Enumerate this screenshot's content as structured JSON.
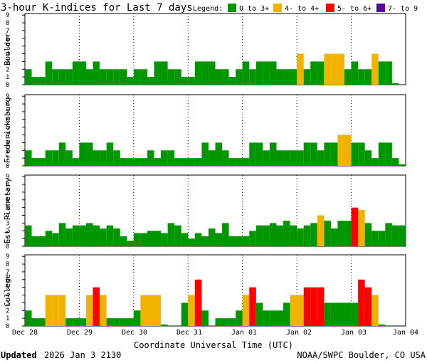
{
  "chart_data": {
    "type": "bar",
    "title": "3-hour K-indices for Last 7 days",
    "legend": {
      "label": "Legend:",
      "items": [
        {
          "label": "0 to 3+",
          "color": "#009600"
        },
        {
          "label": "4- to 4+",
          "color": "#f0b400"
        },
        {
          "label": "5- to 6+",
          "color": "#ff0000"
        },
        {
          "label": "7- to 9",
          "color": "#5a00a0"
        }
      ]
    },
    "x_tick_labels": [
      "Dec 28",
      "Dec 29",
      "Dec 30",
      "Dec 31",
      "Jan 01",
      "Jan 02",
      "Jan 03",
      "Jan 04"
    ],
    "xlabel": "Coordinate Universal Time (UTC)",
    "yticks": [
      "0",
      "1",
      "2",
      "3",
      "4",
      "5",
      "6",
      "7",
      "8",
      "9"
    ],
    "ylim": [
      0,
      9
    ],
    "bars_per_panel": 56,
    "series": [
      {
        "name": "Boulder",
        "values": [
          2,
          1,
          1,
          3,
          2,
          2,
          2,
          3,
          3,
          2,
          3,
          2,
          2,
          2,
          2,
          1,
          2,
          2,
          1,
          3,
          3,
          2,
          2,
          1,
          1,
          3,
          3,
          3,
          2,
          2,
          1,
          2,
          3,
          2,
          3,
          3,
          3,
          2,
          2,
          2,
          4,
          2,
          3,
          3,
          4,
          4,
          4,
          2,
          3,
          2,
          2,
          4,
          3,
          3,
          0.2,
          0
        ]
      },
      {
        "name": "Fredericksburg",
        "values": [
          2,
          1,
          1,
          2,
          2,
          3,
          2,
          1,
          3,
          3,
          2,
          2,
          3,
          2,
          1,
          1,
          1,
          1,
          2,
          1,
          2,
          2,
          1,
          1,
          1,
          1,
          3,
          2,
          3,
          2,
          1,
          1,
          1,
          3,
          3,
          2,
          3,
          2,
          2,
          2,
          2,
          3,
          3,
          2,
          3,
          3,
          4,
          4,
          3,
          3,
          2,
          1,
          3,
          3,
          1,
          0.2
        ]
      },
      {
        "name": "Est. Planetary",
        "values": [
          2.7,
          1.3,
          1.3,
          2,
          1.7,
          3,
          2.3,
          2.7,
          2.7,
          3,
          2.7,
          2.3,
          2.7,
          2.3,
          1.3,
          0.7,
          1.7,
          1.7,
          2,
          2,
          1.7,
          3,
          2.7,
          1.7,
          1,
          1.7,
          1.3,
          2.3,
          1.7,
          3,
          1.3,
          1.3,
          1.3,
          2,
          2.7,
          2.7,
          3,
          2.7,
          3.3,
          2.7,
          2.3,
          2.7,
          3,
          4,
          3.3,
          2.3,
          3.3,
          3.3,
          5,
          4.7,
          3,
          2,
          2,
          3,
          2.7,
          2.7
        ]
      },
      {
        "name": "College",
        "values": [
          2,
          1,
          1,
          4,
          4,
          4,
          1,
          1,
          1,
          4,
          5,
          4,
          1,
          1,
          1,
          1,
          2,
          4,
          4,
          4,
          0.2,
          0,
          0,
          3,
          4,
          6,
          2,
          0,
          1,
          1,
          1,
          2,
          4,
          5,
          3,
          2,
          2,
          2,
          3,
          4,
          4,
          5,
          5,
          5,
          3,
          3,
          3,
          3,
          3,
          6,
          5,
          4,
          0.2,
          0,
          0,
          0
        ]
      }
    ]
  },
  "footer": {
    "updated_label": "Updated",
    "updated_value": "2026 Jan  3 2130",
    "source": "NOAA/SWPC Boulder, CO USA"
  }
}
